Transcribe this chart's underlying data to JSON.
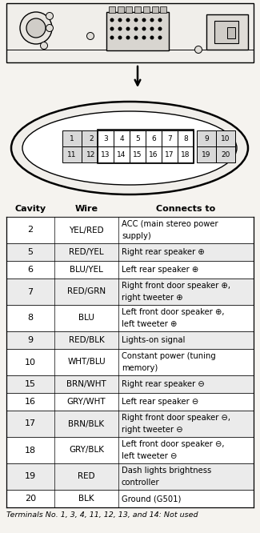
{
  "bg_color": "#f5f3ef",
  "table_headers": [
    "Cavity",
    "Wire",
    "Connects to"
  ],
  "rows": [
    [
      "2",
      "YEL/RED",
      "ACC (main stereo power\nsupply)"
    ],
    [
      "5",
      "RED/YEL",
      "Right rear speaker ⊕"
    ],
    [
      "6",
      "BLU/YEL",
      "Left rear speaker ⊕"
    ],
    [
      "7",
      "RED/GRN",
      "Right front door speaker ⊕,\nright tweeter ⊕"
    ],
    [
      "8",
      "BLU",
      "Left front door speaker ⊕,\nleft tweeter ⊕"
    ],
    [
      "9",
      "RED/BLK",
      "Lights-on signal"
    ],
    [
      "10",
      "WHT/BLU",
      "Constant power (tuning\nmemory)"
    ],
    [
      "15",
      "BRN/WHT",
      "Right rear speaker ⊖"
    ],
    [
      "16",
      "GRY/WHT",
      "Left rear speaker ⊖"
    ],
    [
      "17",
      "BRN/BLK",
      "Right front door speaker ⊖,\nright tweeter ⊖"
    ],
    [
      "18",
      "GRY/BLK",
      "Left front door speaker ⊖,\nleft tweeter ⊖"
    ],
    [
      "19",
      "RED",
      "Dash lights brightness\ncontroller"
    ],
    [
      "20",
      "BLK",
      "Ground (G501)"
    ]
  ],
  "footer": "Terminals No. 1, 3, 4, 11, 12, 13, and 14: Not used",
  "pin_labels_top": [
    "1",
    "2",
    "3",
    "4",
    "5",
    "6",
    "7",
    "8",
    "9",
    "10"
  ],
  "pin_labels_bot": [
    "11",
    "12",
    "13",
    "14",
    "15",
    "16",
    "17",
    "18",
    "19",
    "20"
  ]
}
